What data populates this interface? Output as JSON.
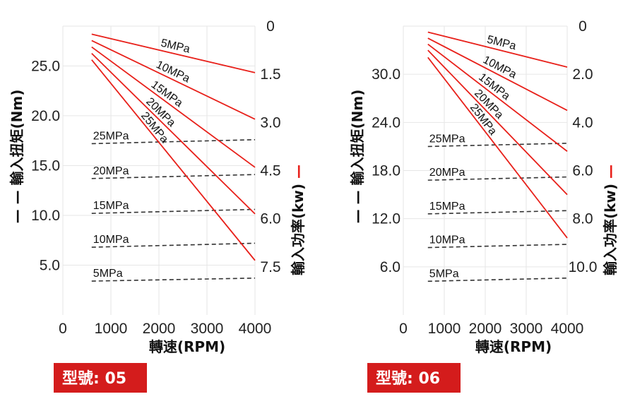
{
  "colors": {
    "power_line": "#e8201a",
    "torque_line": "#333333",
    "grid": "#e6e6e6",
    "badge": "#d41c1c",
    "legend_red": "#e8201a"
  },
  "chart_data": [
    {
      "type": "line",
      "model_label": "型號: 05",
      "xlabel": "轉速(RPM)",
      "ylabel_left": "輸入扭矩(Nm)",
      "ylabel_right": "輸入功率(kw)",
      "left_legend_glyph": "— —",
      "right_legend_glyph": "—",
      "xlim": [
        0,
        4000
      ],
      "x_ticks": [
        "0",
        "1000",
        "2000",
        "3000",
        "4000"
      ],
      "x_tick_values": [
        0,
        1000,
        2000,
        3000,
        4000
      ],
      "ylim_left": [
        0,
        29
      ],
      "y_left_ticks": [
        "5.0",
        "10.0",
        "15.0",
        "20.0",
        "25.0"
      ],
      "y_left_tick_values": [
        5,
        10,
        15,
        20,
        25
      ],
      "ylim_right": [
        0,
        9
      ],
      "y_right_ticks": [
        "0",
        "1.5",
        "3.0",
        "4.5",
        "6.0",
        "7.5"
      ],
      "y_right_tick_values": [
        0,
        1.5,
        3,
        4.5,
        6,
        7.5
      ],
      "torque_series": [
        {
          "name": "5MPa",
          "x": [
            600,
            4000
          ],
          "y": [
            3.4,
            3.7
          ]
        },
        {
          "name": "10MPa",
          "x": [
            600,
            4000
          ],
          "y": [
            6.8,
            7.2
          ]
        },
        {
          "name": "15MPa",
          "x": [
            600,
            4000
          ],
          "y": [
            10.2,
            10.6
          ]
        },
        {
          "name": "20MPa",
          "x": [
            600,
            4000
          ],
          "y": [
            13.7,
            14.1
          ]
        },
        {
          "name": "25MPa",
          "x": [
            600,
            4000
          ],
          "y": [
            17.2,
            17.6
          ]
        }
      ],
      "power_series": [
        {
          "name": "5MPa",
          "x": [
            600,
            4000
          ],
          "y": [
            0.25,
            1.45
          ]
        },
        {
          "name": "10MPa",
          "x": [
            600,
            4000
          ],
          "y": [
            0.45,
            2.9
          ]
        },
        {
          "name": "15MPa",
          "x": [
            600,
            4000
          ],
          "y": [
            0.65,
            4.4
          ]
        },
        {
          "name": "20MPa",
          "x": [
            600,
            4000
          ],
          "y": [
            0.85,
            5.85
          ]
        },
        {
          "name": "25MPa",
          "x": [
            600,
            4000
          ],
          "y": [
            1.05,
            7.3
          ]
        }
      ]
    },
    {
      "type": "line",
      "model_label": "型號: 06",
      "xlabel": "轉速(RPM)",
      "ylabel_left": "輸入扭矩(Nm)",
      "ylabel_right": "輸入功率(kw)",
      "left_legend_glyph": "— —",
      "right_legend_glyph": "—",
      "xlim": [
        0,
        4000
      ],
      "x_ticks": [
        "0",
        "1000",
        "2000",
        "3000",
        "4000"
      ],
      "x_tick_values": [
        0,
        1000,
        2000,
        3000,
        4000
      ],
      "ylim_left": [
        0,
        36
      ],
      "y_left_ticks": [
        "6.0",
        "12.0",
        "18.0",
        "24.0",
        "30.0"
      ],
      "y_left_tick_values": [
        6,
        12,
        18,
        24,
        30
      ],
      "ylim_right": [
        0,
        12
      ],
      "y_right_ticks": [
        "0",
        "2.0",
        "4.0",
        "6.0",
        "8.0",
        "10.0"
      ],
      "y_right_tick_values": [
        0,
        2,
        4,
        6,
        8,
        10
      ],
      "torque_series": [
        {
          "name": "5MPa",
          "x": [
            600,
            4000
          ],
          "y": [
            4.2,
            4.6
          ]
        },
        {
          "name": "10MPa",
          "x": [
            600,
            4000
          ],
          "y": [
            8.4,
            8.8
          ]
        },
        {
          "name": "15MPa",
          "x": [
            600,
            4000
          ],
          "y": [
            12.6,
            13.0
          ]
        },
        {
          "name": "20MPa",
          "x": [
            600,
            4000
          ],
          "y": [
            16.8,
            17.2
          ]
        },
        {
          "name": "25MPa",
          "x": [
            600,
            4000
          ],
          "y": [
            21.0,
            21.4
          ]
        }
      ],
      "power_series": [
        {
          "name": "5MPa",
          "x": [
            600,
            4000
          ],
          "y": [
            0.25,
            1.7
          ]
        },
        {
          "name": "10MPa",
          "x": [
            600,
            4000
          ],
          "y": [
            0.5,
            3.5
          ]
        },
        {
          "name": "15MPa",
          "x": [
            600,
            4000
          ],
          "y": [
            0.75,
            5.2
          ]
        },
        {
          "name": "20MPa",
          "x": [
            600,
            4000
          ],
          "y": [
            1.0,
            7.0
          ]
        },
        {
          "name": "25MPa",
          "x": [
            600,
            4000
          ],
          "y": [
            1.3,
            8.8
          ]
        }
      ]
    }
  ]
}
